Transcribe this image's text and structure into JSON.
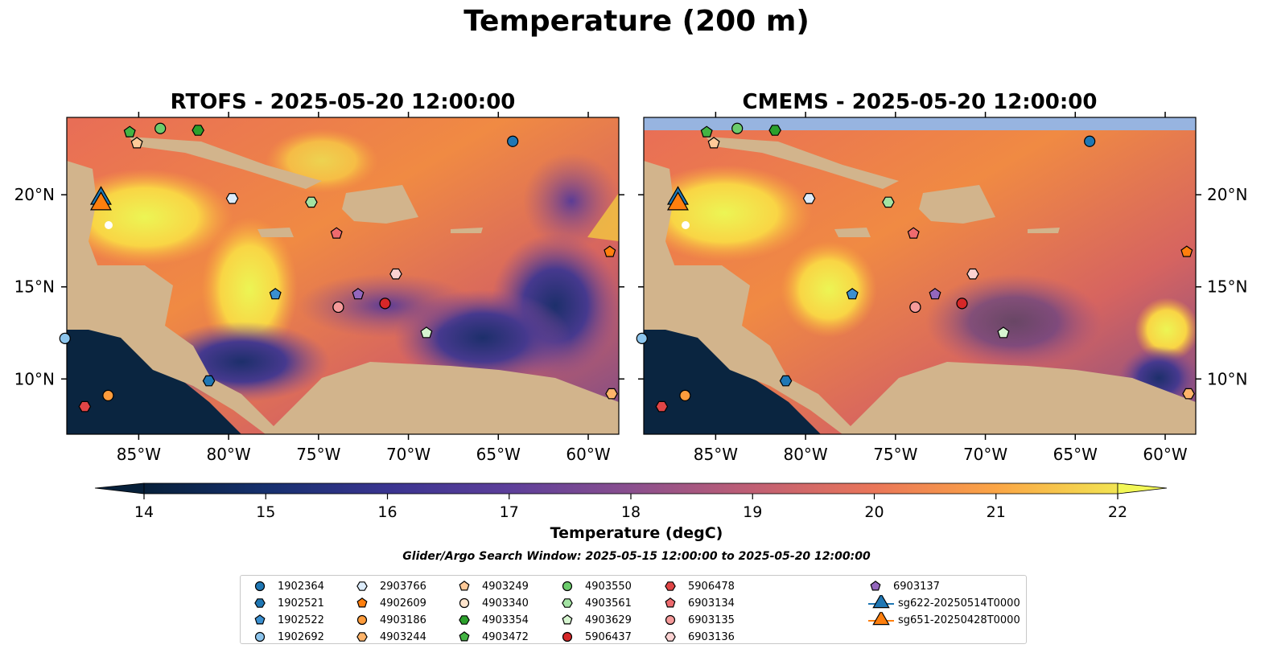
{
  "figure": {
    "title": "Temperature (200 m)",
    "left_panel_title": "RTOFS - 2025-05-20 12:00:00",
    "right_panel_title": "CMEMS - 2025-05-20 12:00:00",
    "colorbar_label": "Temperature (degC)",
    "colorbar_ticks": [
      "14",
      "15",
      "16",
      "17",
      "18",
      "19",
      "20",
      "21",
      "22"
    ],
    "colorbar_range": [
      14,
      22
    ],
    "lon_ticks": [
      "85°W",
      "80°W",
      "75°W",
      "70°W",
      "65°W",
      "60°W"
    ],
    "lat_ticks": [
      "20°N",
      "15°N",
      "10°N"
    ],
    "search_window": "Glider/Argo Search Window: 2025-05-15 12:00:00 to 2025-05-20 12:00:00"
  },
  "legend": [
    {
      "label": "1902364",
      "marker": "circle",
      "color": "#1f77b4"
    },
    {
      "label": "1902521",
      "marker": "hexagon",
      "color": "#1f77b4"
    },
    {
      "label": "1902522",
      "marker": "pentagon",
      "color": "#3a8fd0"
    },
    {
      "label": "1902692",
      "marker": "circle",
      "color": "#8cc4ec"
    },
    {
      "label": "2903766",
      "marker": "hexagon",
      "color": "#dcecfb"
    },
    {
      "label": "4902609",
      "marker": "pentagon",
      "color": "#ff7f0e"
    },
    {
      "label": "4903186",
      "marker": "circle",
      "color": "#ff9c3c"
    },
    {
      "label": "4903244",
      "marker": "hexagon",
      "color": "#ffb46a"
    },
    {
      "label": "4903249",
      "marker": "pentagon",
      "color": "#ffc998"
    },
    {
      "label": "4903340",
      "marker": "circle",
      "color": "#ffe4cc"
    },
    {
      "label": "4903354",
      "marker": "hexagon",
      "color": "#2ca02c"
    },
    {
      "label": "4903472",
      "marker": "pentagon",
      "color": "#43b443"
    },
    {
      "label": "4903550",
      "marker": "circle",
      "color": "#6ccc6c"
    },
    {
      "label": "4903561",
      "marker": "hexagon",
      "color": "#a3e3a3"
    },
    {
      "label": "4903629",
      "marker": "pentagon",
      "color": "#d6f5d0"
    },
    {
      "label": "5906437",
      "marker": "circle",
      "color": "#d62728"
    },
    {
      "label": "5906478",
      "marker": "hexagon",
      "color": "#e04546"
    },
    {
      "label": "6903134",
      "marker": "pentagon",
      "color": "#ee6a6e"
    },
    {
      "label": "6903135",
      "marker": "circle",
      "color": "#f59a9a"
    },
    {
      "label": "6903136",
      "marker": "hexagon",
      "color": "#fbd2d2"
    },
    {
      "label": "6903137",
      "marker": "pentagon",
      "color": "#9467bd"
    },
    {
      "label": "sg622-20250514T0000",
      "marker": "triangle",
      "color": "#1f77b4"
    },
    {
      "label": "sg651-20250428T0000",
      "marker": "triangle",
      "color": "#ff7f0e"
    }
  ],
  "floats": [
    {
      "id": "1902364",
      "lon": -64.2,
      "lat": 22.9
    },
    {
      "id": "1902521",
      "lon": -81.1,
      "lat": 9.9
    },
    {
      "id": "1902522",
      "lon": -77.4,
      "lat": 14.6
    },
    {
      "id": "1902692",
      "lon": -89.1,
      "lat": 12.2
    },
    {
      "id": "2903766",
      "lon": -79.8,
      "lat": 19.8
    },
    {
      "id": "4902609",
      "lon": -58.8,
      "lat": 16.9
    },
    {
      "id": "4903186",
      "lon": -86.7,
      "lat": 9.1
    },
    {
      "id": "4903244",
      "lon": -58.7,
      "lat": 9.2
    },
    {
      "id": "4903249",
      "lon": -85.1,
      "lat": 22.8
    },
    {
      "id": "4903340",
      "lon": -73.9,
      "lat": 13.9
    },
    {
      "id": "4903354",
      "lon": -81.7,
      "lat": 23.5
    },
    {
      "id": "4903472",
      "lon": -85.5,
      "lat": 23.4
    },
    {
      "id": "4903550",
      "lon": -83.8,
      "lat": 23.6
    },
    {
      "id": "4903561",
      "lon": -75.4,
      "lat": 19.6
    },
    {
      "id": "4903629",
      "lon": -69.0,
      "lat": 12.5
    },
    {
      "id": "5906437",
      "lon": -71.3,
      "lat": 14.1
    },
    {
      "id": "5906478",
      "lon": -88.0,
      "lat": 8.5
    },
    {
      "id": "6903134",
      "lon": -74.0,
      "lat": 17.9
    },
    {
      "id": "6903135",
      "lon": -73.9,
      "lat": 13.9
    },
    {
      "id": "6903136",
      "lon": -70.7,
      "lat": 15.7
    },
    {
      "id": "6903137",
      "lon": -72.8,
      "lat": 14.6
    }
  ],
  "gliders": [
    {
      "id": "sg622-20250514T0000",
      "lon": -87.1,
      "lat": 19.8
    },
    {
      "id": "sg651-20250428T0000",
      "lon": -87.1,
      "lat": 19.5
    }
  ]
}
